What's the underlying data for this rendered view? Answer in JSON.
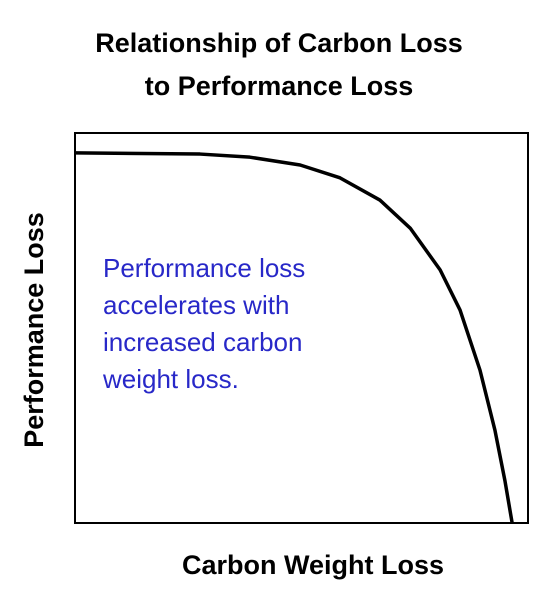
{
  "chart_data": {
    "type": "line",
    "title_lines": [
      "Relationship of Carbon Loss",
      "to Performance Loss"
    ],
    "x_label": "Carbon Weight Loss",
    "y_label": "Performance Loss",
    "annotation_lines": [
      "Performance loss",
      "accelerates with",
      "increased carbon",
      "weight loss."
    ],
    "annotation_color": "#2828c8",
    "xlim": [
      0,
      100
    ],
    "ylim": [
      0,
      100
    ],
    "x": [
      0,
      27.6,
      38.6,
      49.7,
      58.5,
      67.3,
      74.0,
      80.6,
      85.0,
      89.4,
      92.7,
      94.9,
      96.5
    ],
    "series": [
      {
        "color": "#000000",
        "values": [
          94.9,
          94.6,
          93.8,
          91.8,
          88.5,
          82.8,
          75.6,
          64.9,
          54.6,
          39.2,
          23.8,
          10.9,
          0
        ]
      }
    ]
  }
}
